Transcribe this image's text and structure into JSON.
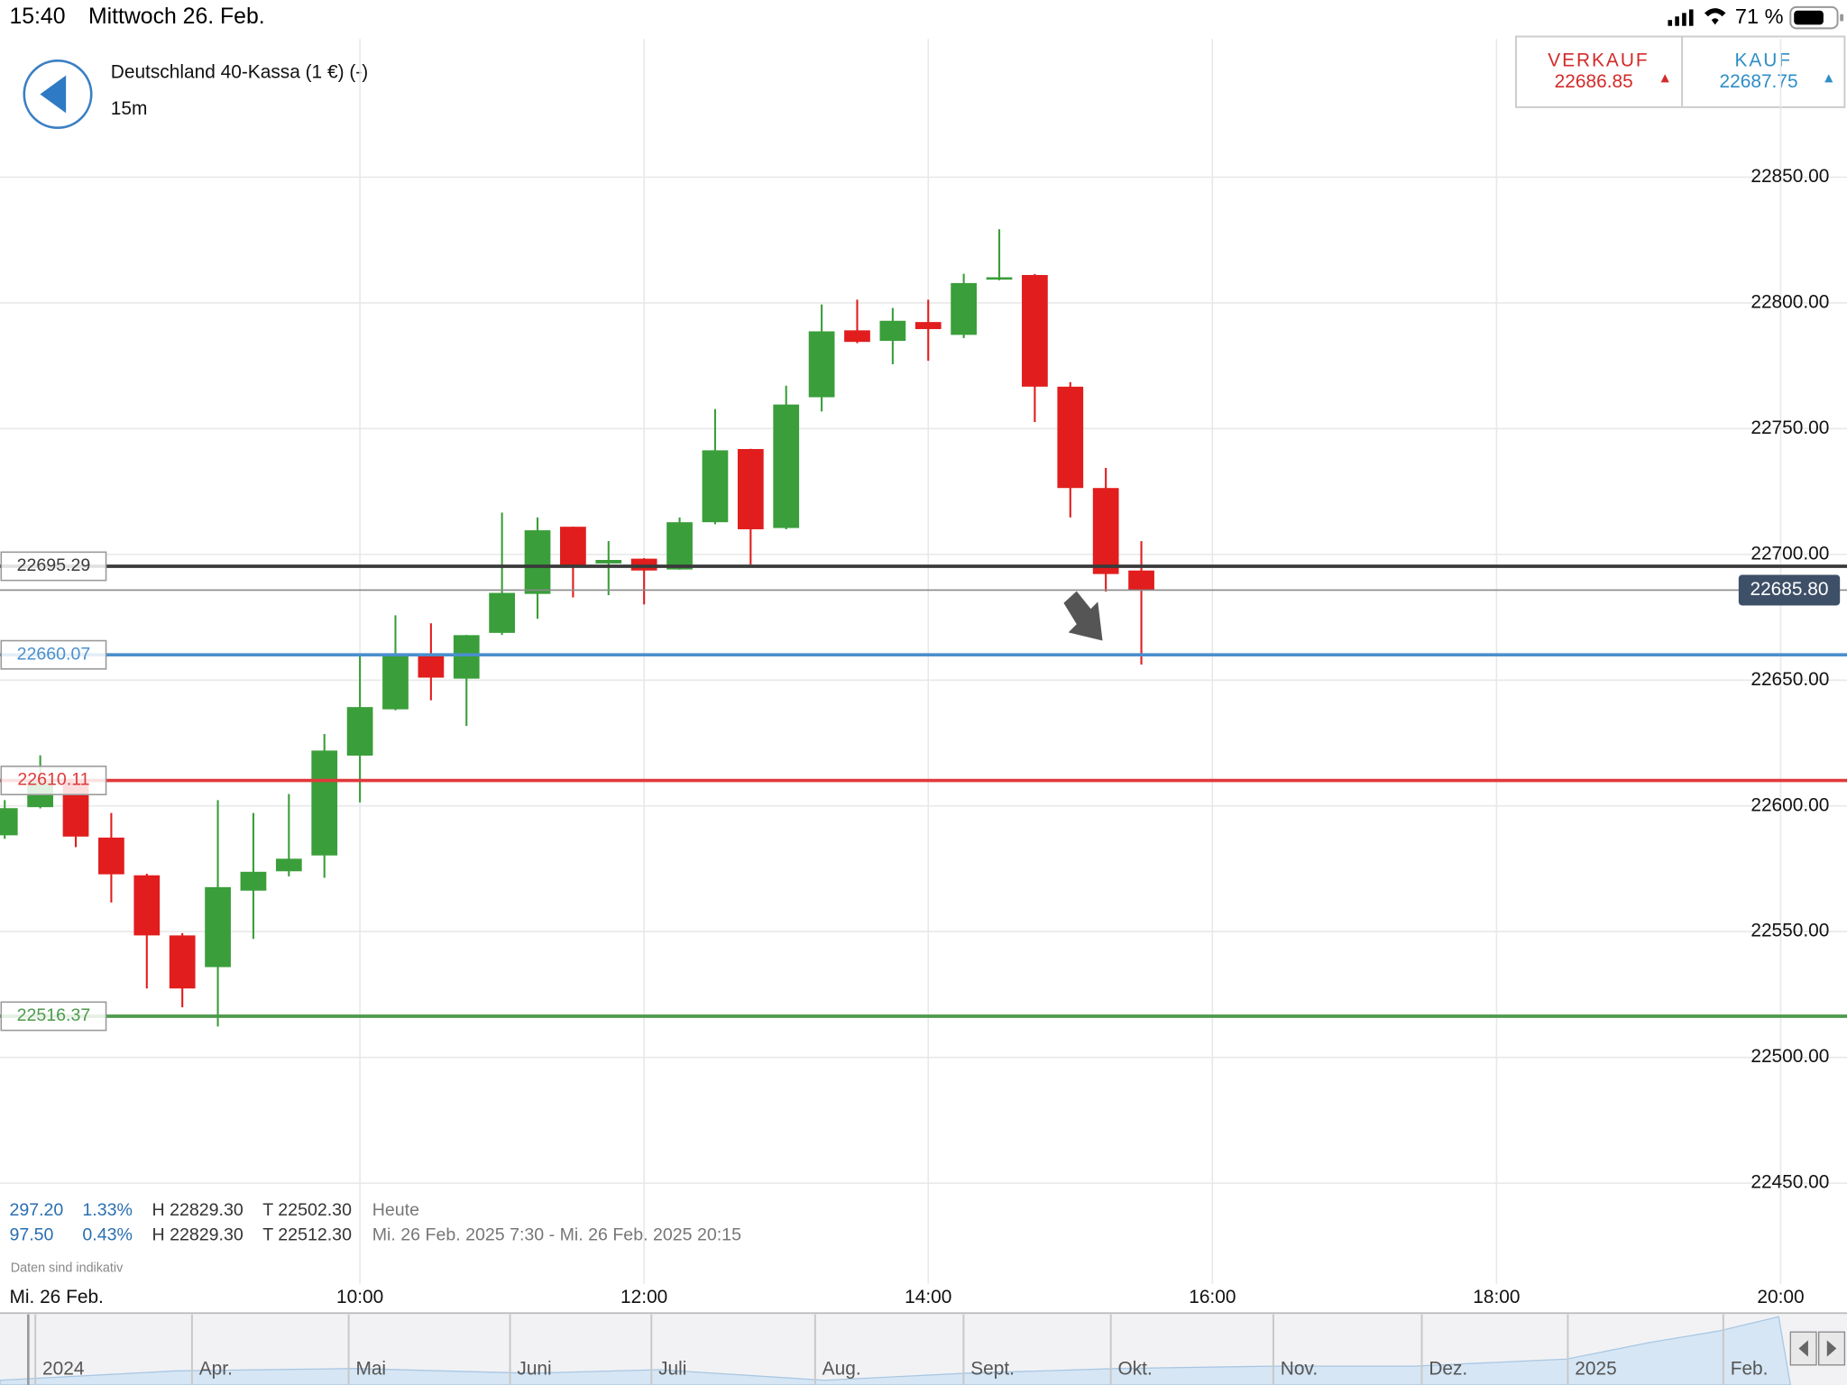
{
  "status_bar": {
    "time": "15:40",
    "date": "Mittwoch 26. Feb.",
    "battery": "71 %"
  },
  "header": {
    "title": "Deutschland 40-Kassa (1 €) (-)",
    "interval": "15m"
  },
  "quote": {
    "sell_label": "VERKAUF",
    "sell_price": "22686.85",
    "buy_label": "KAUF",
    "buy_price": "22687.75"
  },
  "chart_data": {
    "type": "candlestick",
    "x": [
      "07:30",
      "07:45",
      "08:00",
      "08:15",
      "08:30",
      "08:45",
      "09:00",
      "09:15",
      "09:30",
      "09:45",
      "10:00",
      "10:15",
      "10:30",
      "10:45",
      "11:00",
      "11:15",
      "11:30",
      "11:45",
      "12:00",
      "12:15",
      "12:30",
      "12:45",
      "13:00",
      "13:15",
      "13:30",
      "13:45",
      "14:00",
      "14:15",
      "14:30",
      "14:45",
      "15:00",
      "15:15",
      "15:30"
    ],
    "open": [
      22588.3,
      22599.5,
      22610.8,
      22587.4,
      22572.4,
      22548.5,
      22535.9,
      22566.3,
      22574.0,
      22580.3,
      22620.0,
      22638.4,
      22660.4,
      22650.6,
      22668.8,
      22684.3,
      22711.0,
      22696.4,
      22698.3,
      22694.0,
      22712.8,
      22741.9,
      22710.5,
      22762.5,
      22789.1,
      22784.9,
      22792.4,
      22787.3,
      22809.3,
      22811.1,
      22766.7,
      22726.4,
      22693.6
    ],
    "high": [
      22602.3,
      22620.1,
      22612.0,
      22597.2,
      22573.0,
      22549.4,
      22602.3,
      22597.2,
      22604.7,
      22628.6,
      22659.5,
      22675.8,
      22672.6,
      22668.0,
      22716.6,
      22714.7,
      22711.0,
      22705.3,
      22698.5,
      22714.7,
      22757.8,
      22742.0,
      22767.1,
      22799.4,
      22801.3,
      22798.0,
      22801.3,
      22811.6,
      22829.3,
      22811.5,
      22768.5,
      22734.4,
      22705.3
    ],
    "low": [
      22586.9,
      22599.0,
      22583.6,
      22561.6,
      22527.4,
      22519.9,
      22512.3,
      22547.1,
      22572.0,
      22571.4,
      22601.4,
      22638.0,
      22642.0,
      22631.8,
      22668.0,
      22674.4,
      22682.9,
      22683.8,
      22680.1,
      22693.9,
      22712.0,
      22696.0,
      22710.0,
      22756.8,
      22784.0,
      22775.6,
      22777.0,
      22786.0,
      22809.0,
      22752.6,
      22714.7,
      22685.2,
      22656.2
    ],
    "close": [
      22599.1,
      22610.8,
      22587.8,
      22572.8,
      22548.5,
      22527.4,
      22567.7,
      22573.8,
      22579.0,
      22622.0,
      22639.3,
      22660.4,
      22651.0,
      22667.9,
      22684.7,
      22709.6,
      22695.5,
      22697.8,
      22693.6,
      22712.8,
      22741.4,
      22710.0,
      22759.6,
      22788.7,
      22784.5,
      22792.9,
      22789.6,
      22807.9,
      22810.2,
      22766.7,
      22726.4,
      22692.2,
      22685.8
    ],
    "up_color": "#3a9e3a",
    "down_color": "#e11d1d",
    "xlim": [
      "07:28",
      "20:28"
    ],
    "xticks": [
      "10:00",
      "12:00",
      "14:00",
      "16:00",
      "18:00",
      "20:00"
    ],
    "date_label": "Mi. 26 Feb.",
    "ylim": [
      22410,
      22905
    ],
    "yticks": [
      {
        "value": 22450,
        "label": "22450.00"
      },
      {
        "value": 22500,
        "label": "22500.00"
      },
      {
        "value": 22550,
        "label": "22550.00"
      },
      {
        "value": 22600,
        "label": "22600.00"
      },
      {
        "value": 22650,
        "label": "22650.00"
      },
      {
        "value": 22700,
        "label": "22700.00"
      },
      {
        "value": 22750,
        "label": "22750.00"
      },
      {
        "value": 22800,
        "label": "22800.00"
      },
      {
        "value": 22850,
        "label": "22850.00"
      }
    ],
    "grid": true,
    "levels": [
      {
        "value": 22695.29,
        "color": "#3a3a3a"
      },
      {
        "value": 22660.07,
        "color": "#4a8fcc"
      },
      {
        "value": 22610.11,
        "color": "#e0393b"
      },
      {
        "value": 22516.37,
        "color": "#4c9a4c"
      }
    ],
    "last_price": {
      "value": 22685.8,
      "label": "22685.80"
    }
  },
  "stats": {
    "rows": [
      [
        "297.20",
        "1.33%",
        "H 22829.30",
        "T 22502.30",
        "Heute"
      ],
      [
        "97.50",
        "0.43%",
        "H 22829.30",
        "T 22512.30",
        "Mi. 26 Feb. 2025 7:30 - Mi. 26 Feb. 2025 20:15"
      ]
    ],
    "note": "Daten sind indikativ"
  },
  "navigator": {
    "labels": [
      "2024",
      "Apr.",
      "Mai",
      "Juni",
      "Juli",
      "Aug.",
      "Sept.",
      "Okt.",
      "Nov.",
      "Dez.",
      "2025",
      "Feb."
    ]
  }
}
